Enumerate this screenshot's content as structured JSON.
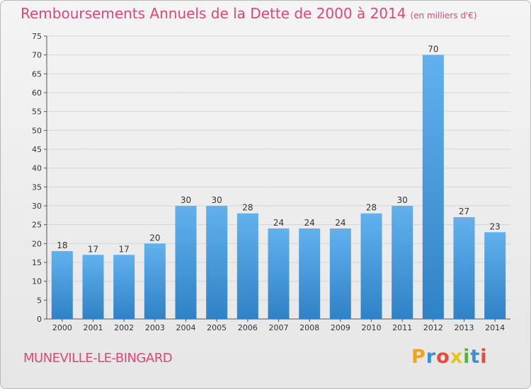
{
  "title": "Remboursements Annuels de la Dette de 2000 à 2014",
  "unit_note": "(en milliers d'€)",
  "city": "MUNEVILLE-LE-BINGARD",
  "logo": {
    "p": "P",
    "r": "r",
    "o": "o",
    "x": "x",
    "i": "i",
    "t": "t",
    "i2": "i"
  },
  "colors": {
    "title": "#e0457c",
    "bar_light": "#62b1ee",
    "bar_dark": "#2f82c6"
  },
  "chart_data": {
    "type": "bar",
    "title": "Remboursements Annuels de la Dette de 2000 à 2014",
    "xlabel": "",
    "ylabel": "",
    "categories": [
      "2000",
      "2001",
      "2002",
      "2003",
      "2004",
      "2005",
      "2006",
      "2007",
      "2008",
      "2009",
      "2010",
      "2011",
      "2012",
      "2013",
      "2014"
    ],
    "values": [
      18,
      17,
      17,
      20,
      30,
      30,
      28,
      24,
      24,
      24,
      28,
      30,
      70,
      27,
      23
    ],
    "ylim": [
      0,
      75
    ],
    "yticks": [
      0,
      5,
      10,
      15,
      20,
      25,
      30,
      35,
      40,
      45,
      50,
      55,
      60,
      65,
      70,
      75
    ],
    "grid": true
  }
}
